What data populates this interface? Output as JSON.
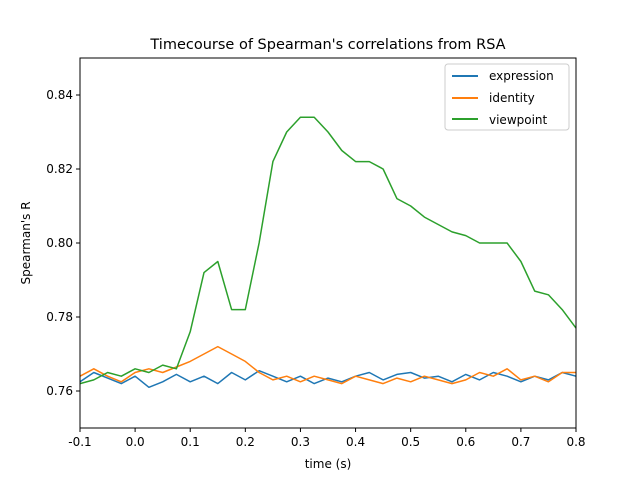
{
  "chart_data": {
    "type": "line",
    "title": "Timecourse of Spearman's correlations from RSA",
    "xlabel": "time (s)",
    "ylabel": "Spearman's R",
    "xlim": [
      -0.1,
      0.8
    ],
    "ylim": [
      0.75,
      0.85
    ],
    "xticks": [
      "-0.1",
      "0.0",
      "0.1",
      "0.2",
      "0.3",
      "0.4",
      "0.5",
      "0.6",
      "0.7",
      "0.8"
    ],
    "yticks": [
      "0.76",
      "0.78",
      "0.80",
      "0.82",
      "0.84"
    ],
    "grid": false,
    "legend_position": "top-right",
    "x": [
      -0.1,
      -0.075,
      -0.05,
      -0.025,
      0.0,
      0.025,
      0.05,
      0.075,
      0.1,
      0.125,
      0.15,
      0.175,
      0.2,
      0.225,
      0.25,
      0.275,
      0.3,
      0.325,
      0.35,
      0.375,
      0.4,
      0.425,
      0.45,
      0.475,
      0.5,
      0.525,
      0.55,
      0.575,
      0.6,
      0.625,
      0.65,
      0.675,
      0.7,
      0.725,
      0.75,
      0.775,
      0.8
    ],
    "series": [
      {
        "name": "expression",
        "color": "#1f77b4",
        "values": [
          0.7625,
          0.765,
          0.7635,
          0.762,
          0.764,
          0.761,
          0.7625,
          0.7645,
          0.7625,
          0.764,
          0.762,
          0.765,
          0.763,
          0.7655,
          0.764,
          0.7625,
          0.764,
          0.762,
          0.7635,
          0.7625,
          0.764,
          0.765,
          0.763,
          0.7645,
          0.765,
          0.7635,
          0.764,
          0.7625,
          0.7645,
          0.763,
          0.765,
          0.764,
          0.7625,
          0.764,
          0.763,
          0.765,
          0.764
        ]
      },
      {
        "name": "identity",
        "color": "#ff7f0e",
        "values": [
          0.764,
          0.766,
          0.764,
          0.7625,
          0.765,
          0.766,
          0.765,
          0.7665,
          0.768,
          0.77,
          0.772,
          0.77,
          0.768,
          0.765,
          0.763,
          0.764,
          0.7625,
          0.764,
          0.763,
          0.762,
          0.764,
          0.763,
          0.762,
          0.7635,
          0.7625,
          0.764,
          0.763,
          0.762,
          0.763,
          0.765,
          0.764,
          0.766,
          0.763,
          0.764,
          0.7625,
          0.765,
          0.765
        ]
      },
      {
        "name": "viewpoint",
        "color": "#2ca02c",
        "values": [
          0.762,
          0.763,
          0.765,
          0.764,
          0.766,
          0.765,
          0.767,
          0.766,
          0.776,
          0.792,
          0.795,
          0.782,
          0.782,
          0.8,
          0.822,
          0.83,
          0.834,
          0.834,
          0.83,
          0.825,
          0.822,
          0.822,
          0.82,
          0.812,
          0.81,
          0.807,
          0.805,
          0.803,
          0.802,
          0.8,
          0.8,
          0.8,
          0.795,
          0.787,
          0.786,
          0.782,
          0.777
        ]
      }
    ]
  }
}
